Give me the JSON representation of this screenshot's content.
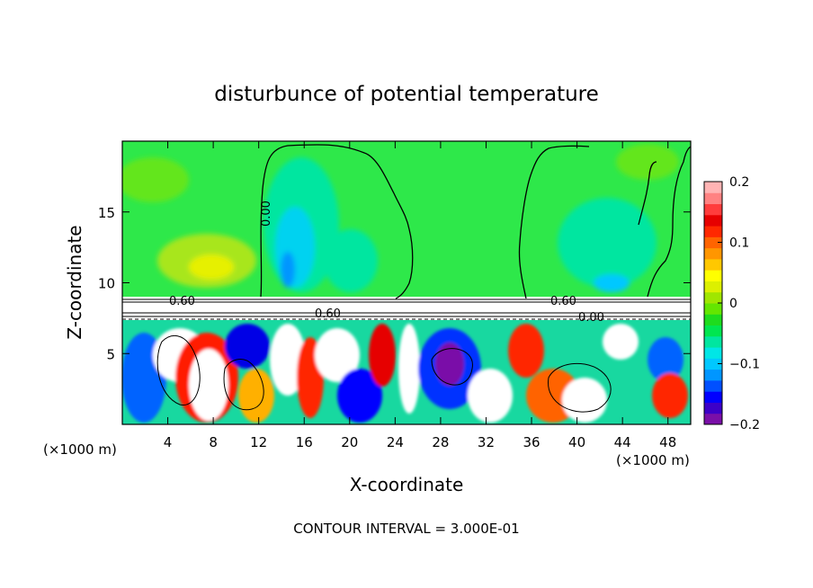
{
  "chart_data": {
    "type": "heatmap",
    "title": "disturbunce of potential temperature",
    "xlabel": "X-coordinate",
    "ylabel": "Z-coordinate",
    "x_unit_left": "(×1000 m)",
    "x_unit_right": "(×1000 m)",
    "xlim": [
      0,
      50
    ],
    "ylim": [
      0,
      20
    ],
    "xticks": [
      4,
      8,
      12,
      16,
      20,
      24,
      28,
      32,
      36,
      40,
      44,
      48
    ],
    "yticks": [
      5,
      10,
      15
    ],
    "colorbar": {
      "range": [
        -0.2,
        0.2
      ],
      "tick_labels": [
        "0.2",
        "0.1",
        "0",
        "−0.1",
        "−0.2"
      ],
      "tick_values": [
        0.2,
        0.1,
        0,
        -0.1,
        -0.2
      ],
      "colors": [
        "#7a0fa8",
        "#3c00c8",
        "#0000ff",
        "#0050ff",
        "#0096ff",
        "#00c8ff",
        "#00e6e6",
        "#00e6a0",
        "#00e650",
        "#1edc1e",
        "#64e600",
        "#a0e600",
        "#dcf000",
        "#ffff00",
        "#ffc800",
        "#ff9600",
        "#ff6400",
        "#ff2800",
        "#e60000",
        "#ff3c3c",
        "#ff8282",
        "#ffb4b4"
      ]
    },
    "contour_labels": [
      "0.00",
      "0.60"
    ],
    "footer": "CONTOUR INTERVAL = 3.000E-01"
  }
}
